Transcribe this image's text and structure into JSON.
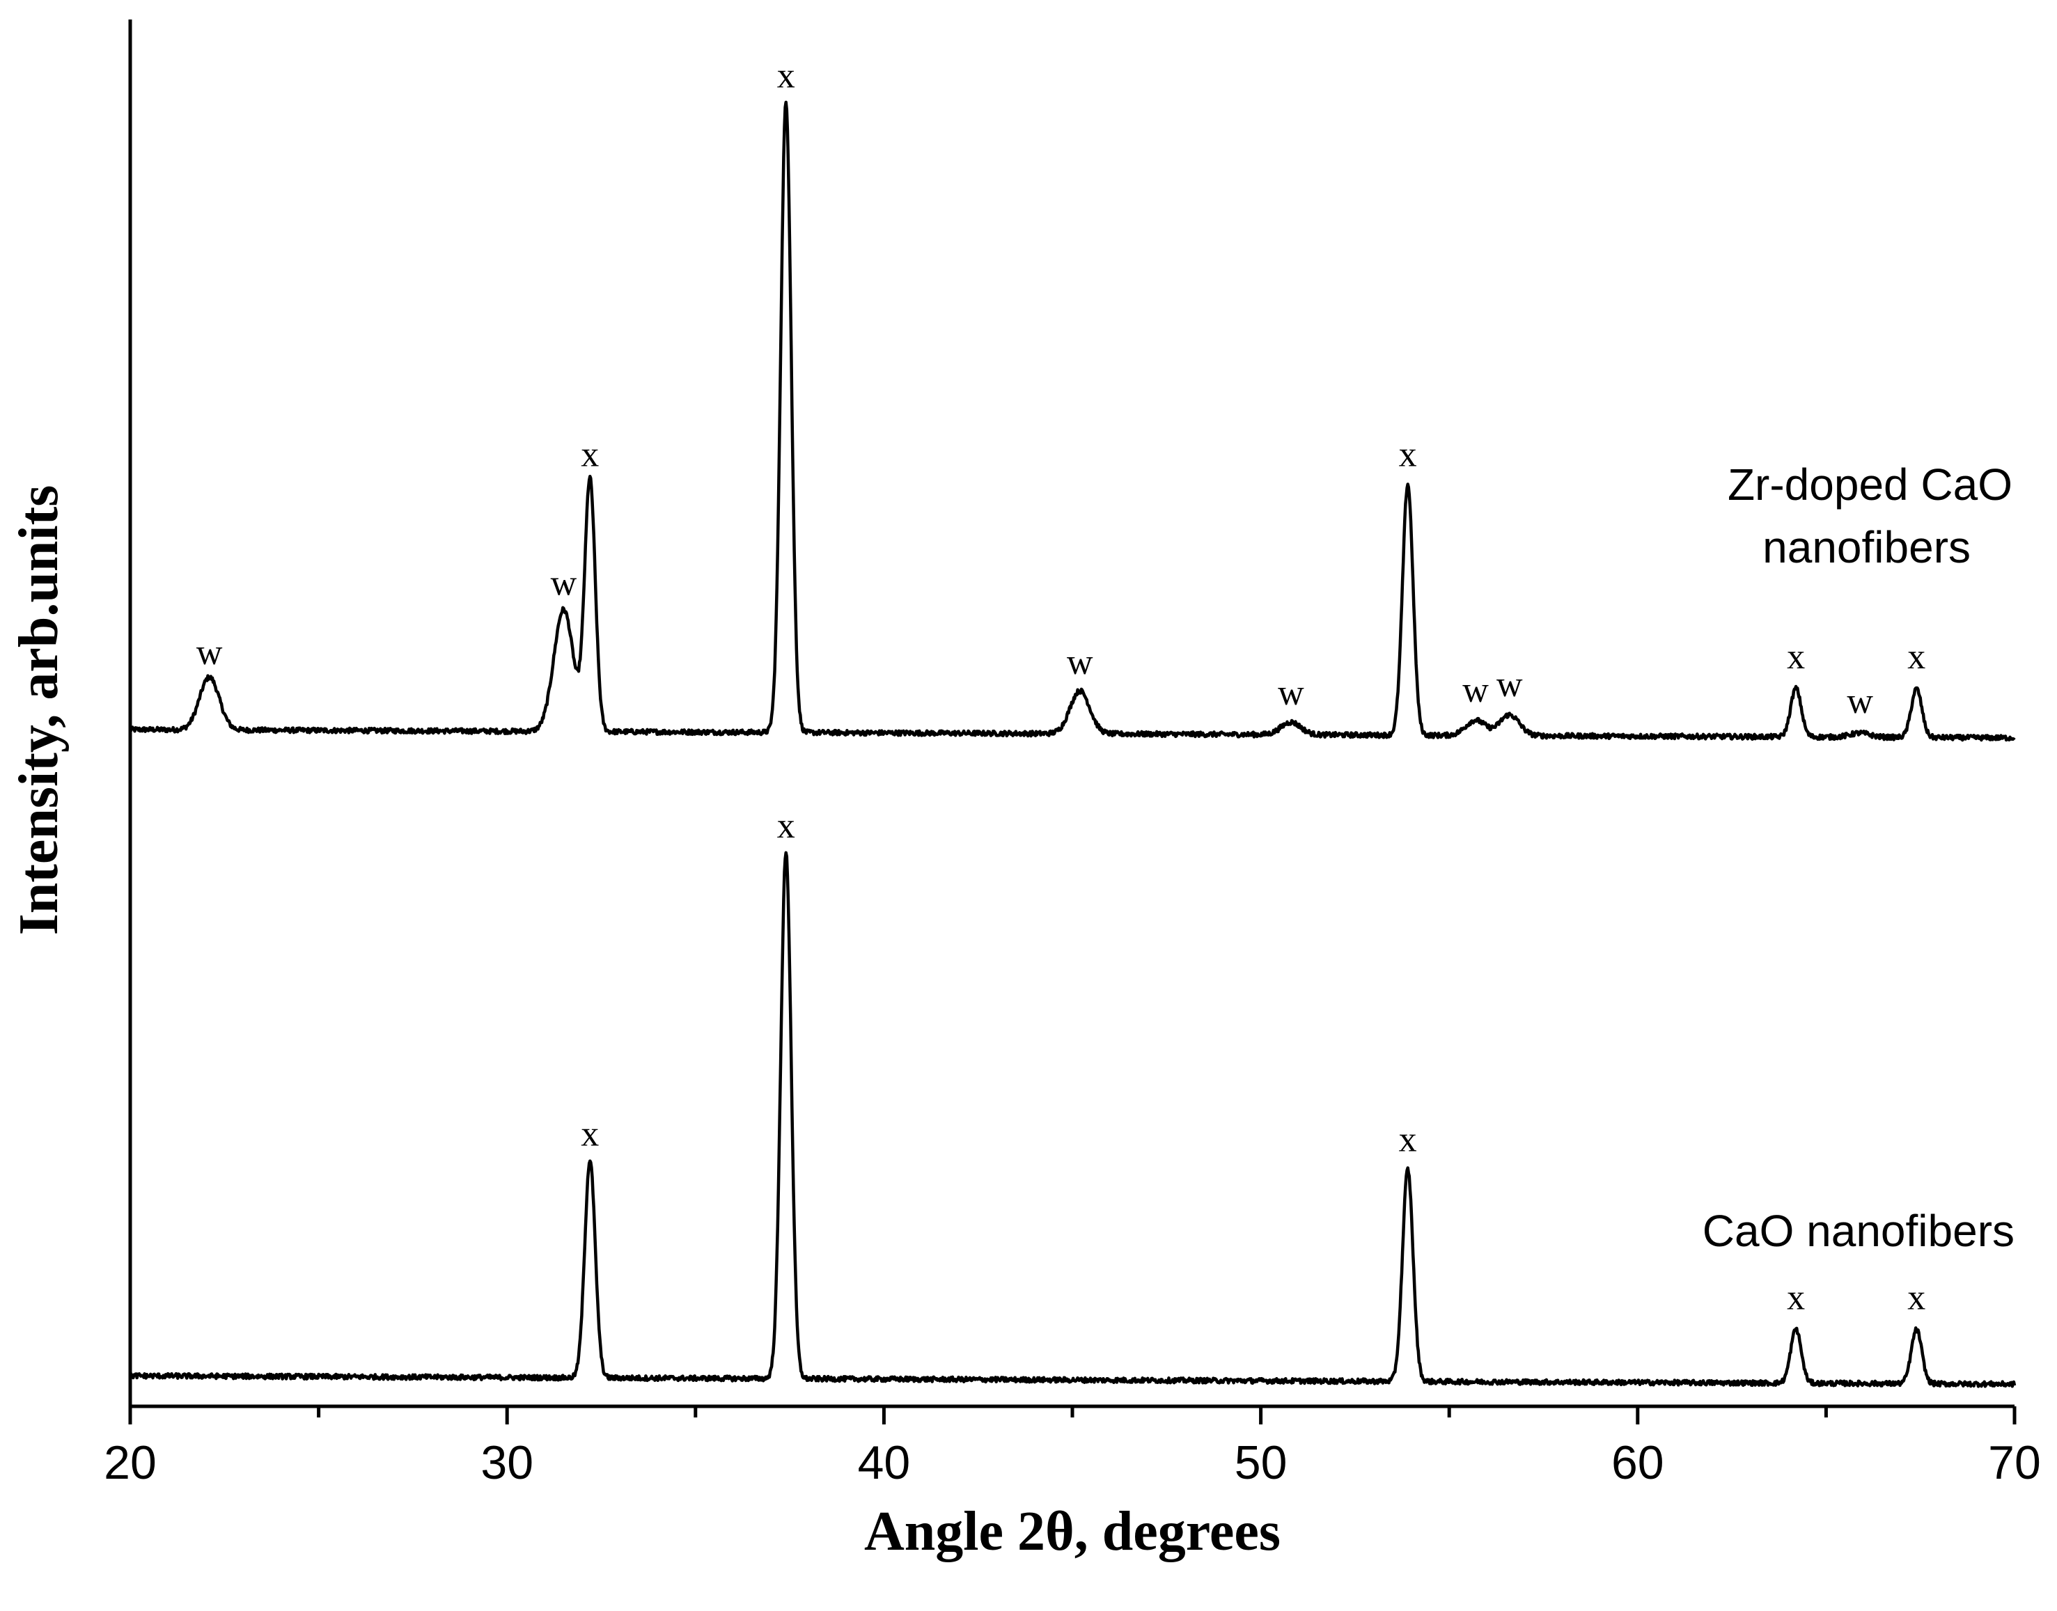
{
  "chart_data": {
    "type": "line",
    "xlabel": "Angle 2θ, degrees",
    "ylabel": "Intensity, arb.units",
    "xlim": [
      20,
      70
    ],
    "xticks": [
      "20",
      "30",
      "40",
      "50",
      "60",
      "70"
    ],
    "ylim": [
      0,
      100
    ],
    "y_ticks_shown": false,
    "grid": false,
    "series": [
      {
        "name": "Zr-doped CaO nanofibers",
        "baseline": 48.8,
        "peaks": [
          {
            "x": 22.1,
            "y": 52.6,
            "label": "w"
          },
          {
            "x": 31.5,
            "y": 57.6,
            "label": "w"
          },
          {
            "x": 32.2,
            "y": 66.9,
            "label": "x"
          },
          {
            "x": 37.4,
            "y": 94.2,
            "label": "x"
          },
          {
            "x": 45.2,
            "y": 51.9,
            "label": "w"
          },
          {
            "x": 50.8,
            "y": 49.7,
            "label": "w"
          },
          {
            "x": 53.9,
            "y": 66.9,
            "label": "x"
          },
          {
            "x": 55.7,
            "y": 49.9,
            "label": "w"
          },
          {
            "x": 56.6,
            "y": 50.3,
            "label": "w"
          },
          {
            "x": 64.2,
            "y": 52.3,
            "label": "x"
          },
          {
            "x": 65.9,
            "y": 49.1,
            "label": "w"
          },
          {
            "x": 67.4,
            "y": 52.3,
            "label": "x"
          }
        ]
      },
      {
        "name": "CaO nanofibers",
        "baseline": 2.2,
        "peaks": [
          {
            "x": 32.2,
            "y": 17.9,
            "label": "x"
          },
          {
            "x": 37.4,
            "y": 40.1,
            "label": "x"
          },
          {
            "x": 53.9,
            "y": 17.5,
            "label": "x"
          },
          {
            "x": 64.2,
            "y": 6.1,
            "label": "x"
          },
          {
            "x": 67.4,
            "y": 6.1,
            "label": "x"
          }
        ]
      }
    ]
  }
}
